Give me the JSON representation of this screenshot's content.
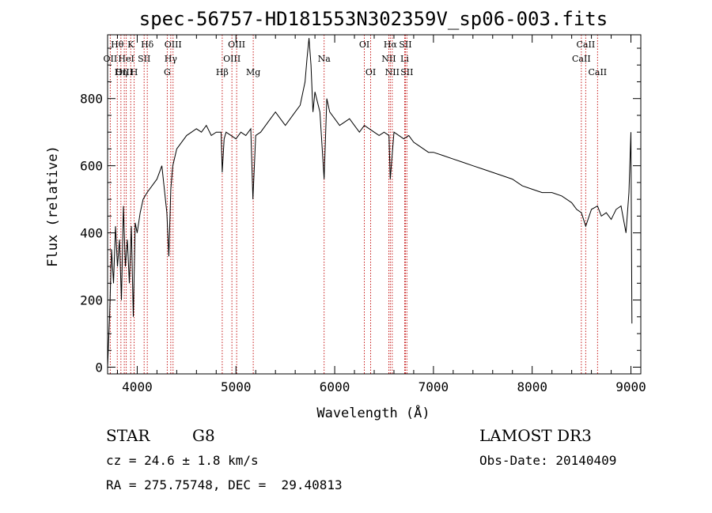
{
  "chart_data": {
    "type": "line",
    "title": "spec-56757-HD181553N302359V_sp06-003.fits",
    "xlabel": "Wavelength (Å)",
    "ylabel": "Flux (relative)",
    "xlim": [
      3700,
      9100
    ],
    "ylim": [
      -20,
      990
    ],
    "xticks": [
      4000,
      5000,
      6000,
      7000,
      8000,
      9000
    ],
    "yticks": [
      0,
      200,
      400,
      600,
      800
    ],
    "series": [
      {
        "name": "flux",
        "x": [
          3700,
          3720,
          3740,
          3760,
          3780,
          3800,
          3820,
          3840,
          3860,
          3880,
          3900,
          3920,
          3940,
          3960,
          3980,
          4000,
          4030,
          4060,
          4100,
          4150,
          4200,
          4250,
          4300,
          4320,
          4340,
          4360,
          4400,
          4450,
          4500,
          4550,
          4600,
          4650,
          4700,
          4750,
          4800,
          4850,
          4861,
          4880,
          4900,
          4950,
          5000,
          5050,
          5100,
          5150,
          5172,
          5200,
          5250,
          5300,
          5350,
          5400,
          5450,
          5500,
          5550,
          5600,
          5650,
          5700,
          5720,
          5740,
          5760,
          5780,
          5800,
          5850,
          5893,
          5920,
          5950,
          6000,
          6050,
          6100,
          6150,
          6200,
          6250,
          6300,
          6350,
          6400,
          6450,
          6500,
          6550,
          6563,
          6600,
          6650,
          6700,
          6750,
          6800,
          6850,
          6900,
          6950,
          7000,
          7100,
          7200,
          7300,
          7400,
          7500,
          7600,
          7700,
          7800,
          7900,
          8000,
          8100,
          8200,
          8300,
          8400,
          8450,
          8498,
          8542,
          8600,
          8662,
          8700,
          8750,
          8800,
          8850,
          8900,
          8950,
          8980,
          9000,
          9010
        ],
        "y": [
          0,
          150,
          350,
          250,
          420,
          300,
          380,
          200,
          480,
          300,
          380,
          250,
          420,
          150,
          430,
          400,
          460,
          500,
          520,
          540,
          560,
          600,
          460,
          330,
          530,
          600,
          650,
          670,
          690,
          700,
          710,
          700,
          720,
          690,
          700,
          700,
          580,
          680,
          700,
          690,
          680,
          700,
          690,
          710,
          500,
          690,
          700,
          720,
          740,
          760,
          740,
          720,
          740,
          760,
          780,
          850,
          920,
          980,
          900,
          760,
          820,
          760,
          560,
          800,
          760,
          740,
          720,
          730,
          740,
          720,
          700,
          720,
          710,
          700,
          690,
          700,
          690,
          560,
          700,
          690,
          680,
          690,
          670,
          660,
          650,
          640,
          640,
          630,
          620,
          610,
          600,
          590,
          580,
          570,
          560,
          540,
          530,
          520,
          520,
          510,
          490,
          470,
          460,
          420,
          470,
          480,
          450,
          460,
          440,
          470,
          480,
          400,
          520,
          700,
          130
        ]
      }
    ],
    "lines": [
      {
        "name": "Hθ",
        "x": 3798,
        "row": 0
      },
      {
        "name": "OII",
        "x": 3727,
        "row": 1
      },
      {
        "name": "OIII",
        "x": 3869,
        "row": 2
      },
      {
        "name": "K",
        "x": 3934,
        "row": 0
      },
      {
        "name": "HeI",
        "x": 3889,
        "row": 1
      },
      {
        "name": "Hη",
        "x": 3835,
        "row": 2
      },
      {
        "name": "H",
        "x": 3969,
        "row": 2
      },
      {
        "name": "SII",
        "x": 4070,
        "row": 1
      },
      {
        "name": "Hδ",
        "x": 4102,
        "row": 0
      },
      {
        "name": "OIII",
        "x": 4363,
        "row": 0
      },
      {
        "name": "Hγ",
        "x": 4340,
        "row": 1
      },
      {
        "name": "G",
        "x": 4304,
        "row": 2
      },
      {
        "name": "Hβ",
        "x": 4861,
        "row": 2
      },
      {
        "name": "OIII",
        "x": 4959,
        "row": 1
      },
      {
        "name": "OIII",
        "x": 5007,
        "row": 0
      },
      {
        "name": "Mg",
        "x": 5175,
        "row": 2
      },
      {
        "name": "Na",
        "x": 5893,
        "row": 1
      },
      {
        "name": "OI",
        "x": 6300,
        "row": 0
      },
      {
        "name": "OI",
        "x": 6364,
        "row": 2
      },
      {
        "name": "Hα",
        "x": 6563,
        "row": 0
      },
      {
        "name": "NII",
        "x": 6548,
        "row": 1
      },
      {
        "name": "NII",
        "x": 6583,
        "row": 2
      },
      {
        "name": "SII",
        "x": 6716,
        "row": 0
      },
      {
        "name": "Li",
        "x": 6708,
        "row": 1
      },
      {
        "name": "SII",
        "x": 6731,
        "row": 2
      },
      {
        "name": "CaII",
        "x": 8542,
        "row": 0
      },
      {
        "name": "CaII",
        "x": 8498,
        "row": 1
      },
      {
        "name": "CaII",
        "x": 8662,
        "row": 2
      }
    ]
  },
  "info": {
    "class_label": "STAR",
    "subclass": "G8",
    "survey": "LAMOST DR3",
    "cz": "cz = 24.6 ± 1.8 km/s",
    "obs_date": "Obs-Date: 20140409",
    "radec": "RA = 275.75748, DEC =  29.40813"
  }
}
